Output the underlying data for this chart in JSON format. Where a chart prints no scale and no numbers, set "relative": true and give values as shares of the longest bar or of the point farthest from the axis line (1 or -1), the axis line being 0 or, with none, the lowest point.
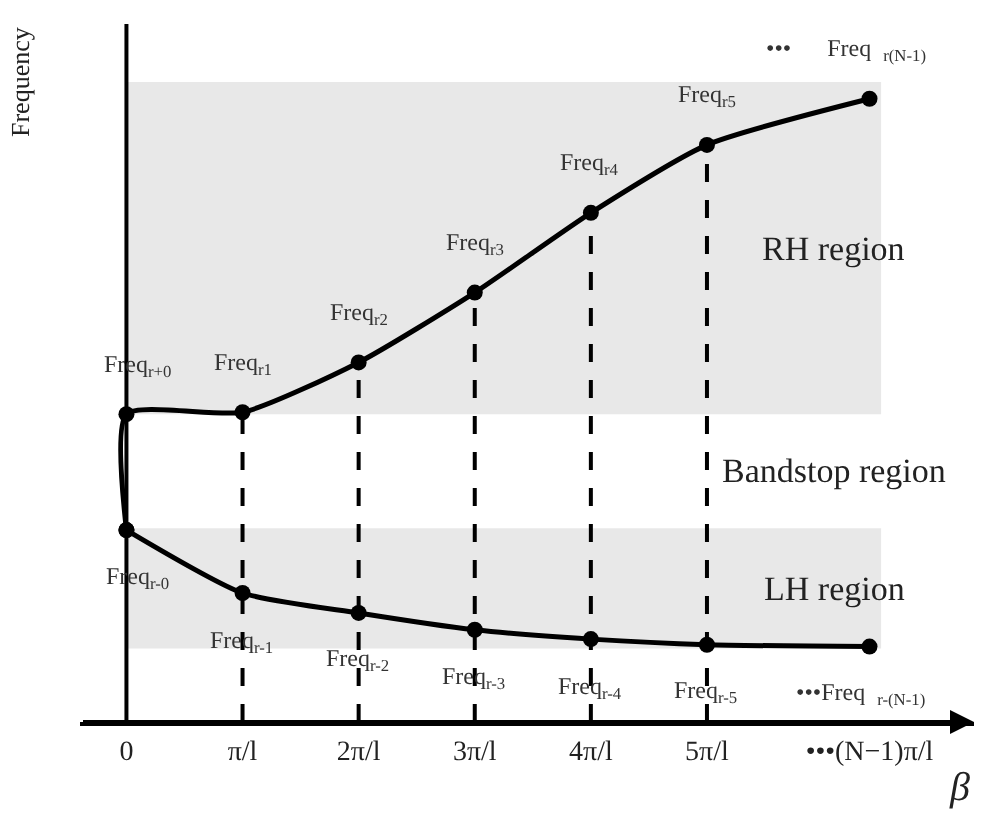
{
  "chart_data": {
    "type": "line",
    "relative": true,
    "ylabel": "Frequency",
    "xlabel": "β",
    "marker": "circle",
    "line_style": "solid",
    "grid": false,
    "xlim": [
      -0.4,
      7.3
    ],
    "xticks": [
      0,
      {
        "value": 1,
        "label": "π/l"
      },
      {
        "value": 2,
        "label": "2π/l"
      },
      {
        "value": 3,
        "label": "3π/l"
      },
      {
        "value": 4,
        "label": "4π/l"
      },
      {
        "value": 5,
        "label": "5π/l"
      },
      {
        "value": 6.4,
        "label": "•••(N−1)π/l"
      }
    ],
    "series": [
      {
        "color": "#000000",
        "x": [
          0,
          0,
          1,
          2,
          3,
          4,
          5,
          6.4
        ],
        "values": [
          0.308,
          0.494,
          0.497,
          0.577,
          0.689,
          0.817,
          0.926,
          1.0
        ]
      },
      {
        "color": "#000000",
        "x": [
          0,
          1,
          2,
          3,
          4,
          5,
          6.4
        ],
        "values": [
          0.308,
          0.207,
          0.175,
          0.148,
          0.133,
          0.124,
          0.121
        ]
      }
    ],
    "bands": [
      {
        "axis": "y",
        "from": 0.494,
        "to": 1.027,
        "label": "RH region",
        "color": "#e8e8e8"
      },
      {
        "axis": "y",
        "from": 0.118,
        "to": 0.311,
        "label": "LH region",
        "color": "#e8e8e8"
      }
    ],
    "ref_lines": [
      {
        "axis": "x",
        "value": 1,
        "line_style": "dashed"
      },
      {
        "axis": "x",
        "value": 2,
        "line_style": "dashed"
      },
      {
        "axis": "x",
        "value": 3,
        "line_style": "dashed"
      },
      {
        "axis": "x",
        "value": 4,
        "line_style": "dashed"
      },
      {
        "axis": "x",
        "value": 5,
        "line_style": "dashed"
      }
    ],
    "annotations": [
      "Bandstop region",
      {
        "text": "Freq$_{r+0}$",
        "x": 0,
        "y": 0.494
      },
      {
        "text": "Freq$_{r1}$",
        "x": 1,
        "y": 0.497
      },
      {
        "text": "Freq$_{r2}$",
        "x": 2,
        "y": 0.577
      },
      {
        "text": "Freq$_{r3}$",
        "x": 3,
        "y": 0.689
      },
      {
        "text": "Freq$_{r4}$",
        "x": 4,
        "y": 0.817
      },
      {
        "text": "Freq$_{r5}$",
        "x": 5,
        "y": 0.926
      },
      {
        "text": "•••      Freq  $_{r(N-1)}$",
        "x": 6.4,
        "y": 1.0
      },
      {
        "text": "Freq$_{r-0}$",
        "x": 0,
        "y": 0.308
      },
      {
        "text": "Freq$_{r-1}$",
        "x": 1,
        "y": 0.207
      },
      {
        "text": "Freq$_{r-2}$",
        "x": 2,
        "y": 0.175
      },
      {
        "text": "Freq$_{r-3}$",
        "x": 3,
        "y": 0.148
      },
      {
        "text": "Freq$_{r-4}$",
        "x": 4,
        "y": 0.133
      },
      {
        "text": "Freq$_{r-5}$",
        "x": 5,
        "y": 0.124
      },
      {
        "text": "•••Freq  $_{r-(N-1)}$",
        "x": 6.4,
        "y": 0.121
      }
    ]
  }
}
